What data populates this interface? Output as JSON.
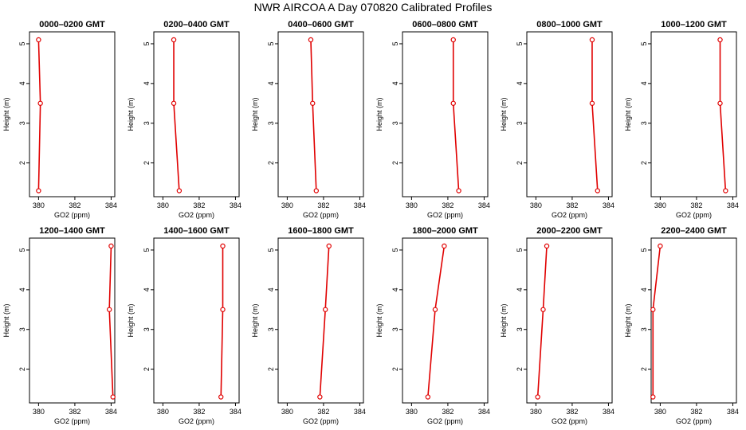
{
  "figure": {
    "title": "NWR AIRCOA A  Day 070820  Calibrated Profiles"
  },
  "colors": {
    "series": "#e00000",
    "axes": "#000000"
  },
  "chart_data": [
    {
      "type": "line",
      "title": "0000–0200 GMT",
      "xlabel": "GO2 (ppm)",
      "ylabel": "Height (m)",
      "xlim": [
        379.5,
        384.2
      ],
      "ylim": [
        1.15,
        5.3
      ],
      "x_ticks": [
        380,
        382,
        384
      ],
      "y_ticks": [
        2,
        3,
        4,
        5
      ],
      "points": [
        {
          "x": 380.0,
          "y": 1.3
        },
        {
          "x": 380.1,
          "y": 3.5
        },
        {
          "x": 380.0,
          "y": 5.1
        }
      ]
    },
    {
      "type": "line",
      "title": "0200–0400 GMT",
      "xlabel": "GO2 (ppm)",
      "ylabel": "Height (m)",
      "xlim": [
        379.5,
        384.2
      ],
      "ylim": [
        1.15,
        5.3
      ],
      "x_ticks": [
        380,
        382,
        384
      ],
      "y_ticks": [
        2,
        3,
        4,
        5
      ],
      "points": [
        {
          "x": 380.9,
          "y": 1.3
        },
        {
          "x": 380.6,
          "y": 3.5
        },
        {
          "x": 380.6,
          "y": 5.1
        }
      ]
    },
    {
      "type": "line",
      "title": "0400–0600 GMT",
      "xlabel": "GO2 (ppm)",
      "ylabel": "Height (m)",
      "xlim": [
        379.5,
        384.2
      ],
      "ylim": [
        1.15,
        5.3
      ],
      "x_ticks": [
        380,
        382,
        384
      ],
      "y_ticks": [
        2,
        3,
        4,
        5
      ],
      "points": [
        {
          "x": 381.6,
          "y": 1.3
        },
        {
          "x": 381.4,
          "y": 3.5
        },
        {
          "x": 381.3,
          "y": 5.1
        }
      ]
    },
    {
      "type": "line",
      "title": "0600–0800 GMT",
      "xlabel": "GO2 (ppm)",
      "ylabel": "Height (m)",
      "xlim": [
        379.5,
        384.2
      ],
      "ylim": [
        1.15,
        5.3
      ],
      "x_ticks": [
        380,
        382,
        384
      ],
      "y_ticks": [
        2,
        3,
        4,
        5
      ],
      "points": [
        {
          "x": 382.6,
          "y": 1.3
        },
        {
          "x": 382.3,
          "y": 3.5
        },
        {
          "x": 382.3,
          "y": 5.1
        }
      ]
    },
    {
      "type": "line",
      "title": "0800–1000 GMT",
      "xlabel": "GO2 (ppm)",
      "ylabel": "Height (m)",
      "xlim": [
        379.5,
        384.2
      ],
      "ylim": [
        1.15,
        5.3
      ],
      "x_ticks": [
        380,
        382,
        384
      ],
      "y_ticks": [
        2,
        3,
        4,
        5
      ],
      "points": [
        {
          "x": 383.4,
          "y": 1.3
        },
        {
          "x": 383.1,
          "y": 3.5
        },
        {
          "x": 383.1,
          "y": 5.1
        }
      ]
    },
    {
      "type": "line",
      "title": "1000–1200 GMT",
      "xlabel": "GO2 (ppm)",
      "ylabel": "Height (m)",
      "xlim": [
        379.5,
        384.2
      ],
      "ylim": [
        1.15,
        5.3
      ],
      "x_ticks": [
        380,
        382,
        384
      ],
      "y_ticks": [
        2,
        3,
        4,
        5
      ],
      "points": [
        {
          "x": 383.6,
          "y": 1.3
        },
        {
          "x": 383.3,
          "y": 3.5
        },
        {
          "x": 383.3,
          "y": 5.1
        }
      ]
    },
    {
      "type": "line",
      "title": "1200–1400 GMT",
      "xlabel": "GO2 (ppm)",
      "ylabel": "Height (m)",
      "xlim": [
        379.5,
        384.2
      ],
      "ylim": [
        1.15,
        5.3
      ],
      "x_ticks": [
        380,
        382,
        384
      ],
      "y_ticks": [
        2,
        3,
        4,
        5
      ],
      "points": [
        {
          "x": 384.1,
          "y": 1.3
        },
        {
          "x": 383.9,
          "y": 3.5
        },
        {
          "x": 384.0,
          "y": 5.1
        }
      ]
    },
    {
      "type": "line",
      "title": "1400–1600 GMT",
      "xlabel": "GO2 (ppm)",
      "ylabel": "Height (m)",
      "xlim": [
        379.5,
        384.2
      ],
      "ylim": [
        1.15,
        5.3
      ],
      "x_ticks": [
        380,
        382,
        384
      ],
      "y_ticks": [
        2,
        3,
        4,
        5
      ],
      "points": [
        {
          "x": 383.2,
          "y": 1.3
        },
        {
          "x": 383.3,
          "y": 3.5
        },
        {
          "x": 383.3,
          "y": 5.1
        }
      ]
    },
    {
      "type": "line",
      "title": "1600–1800 GMT",
      "xlabel": "GO2 (ppm)",
      "ylabel": "Height (m)",
      "xlim": [
        379.5,
        384.2
      ],
      "ylim": [
        1.15,
        5.3
      ],
      "x_ticks": [
        380,
        382,
        384
      ],
      "y_ticks": [
        2,
        3,
        4,
        5
      ],
      "points": [
        {
          "x": 381.8,
          "y": 1.3
        },
        {
          "x": 382.1,
          "y": 3.5
        },
        {
          "x": 382.3,
          "y": 5.1
        }
      ]
    },
    {
      "type": "line",
      "title": "1800–2000 GMT",
      "xlabel": "GO2 (ppm)",
      "ylabel": "Height (m)",
      "xlim": [
        379.5,
        384.2
      ],
      "ylim": [
        1.15,
        5.3
      ],
      "x_ticks": [
        380,
        382,
        384
      ],
      "y_ticks": [
        2,
        3,
        4,
        5
      ],
      "points": [
        {
          "x": 380.9,
          "y": 1.3
        },
        {
          "x": 381.3,
          "y": 3.5
        },
        {
          "x": 381.8,
          "y": 5.1
        }
      ]
    },
    {
      "type": "line",
      "title": "2000–2200 GMT",
      "xlabel": "GO2 (ppm)",
      "ylabel": "Height (m)",
      "xlim": [
        379.5,
        384.2
      ],
      "ylim": [
        1.15,
        5.3
      ],
      "x_ticks": [
        380,
        382,
        384
      ],
      "y_ticks": [
        2,
        3,
        4,
        5
      ],
      "points": [
        {
          "x": 380.1,
          "y": 1.3
        },
        {
          "x": 380.4,
          "y": 3.5
        },
        {
          "x": 380.6,
          "y": 5.1
        }
      ]
    },
    {
      "type": "line",
      "title": "2200–2400 GMT",
      "xlabel": "GO2 (ppm)",
      "ylabel": "Height (m)",
      "xlim": [
        379.5,
        384.2
      ],
      "ylim": [
        1.15,
        5.3
      ],
      "x_ticks": [
        380,
        382,
        384
      ],
      "y_ticks": [
        2,
        3,
        4,
        5
      ],
      "points": [
        {
          "x": 379.6,
          "y": 1.3
        },
        {
          "x": 379.6,
          "y": 3.5
        },
        {
          "x": 380.0,
          "y": 5.1
        }
      ]
    }
  ]
}
